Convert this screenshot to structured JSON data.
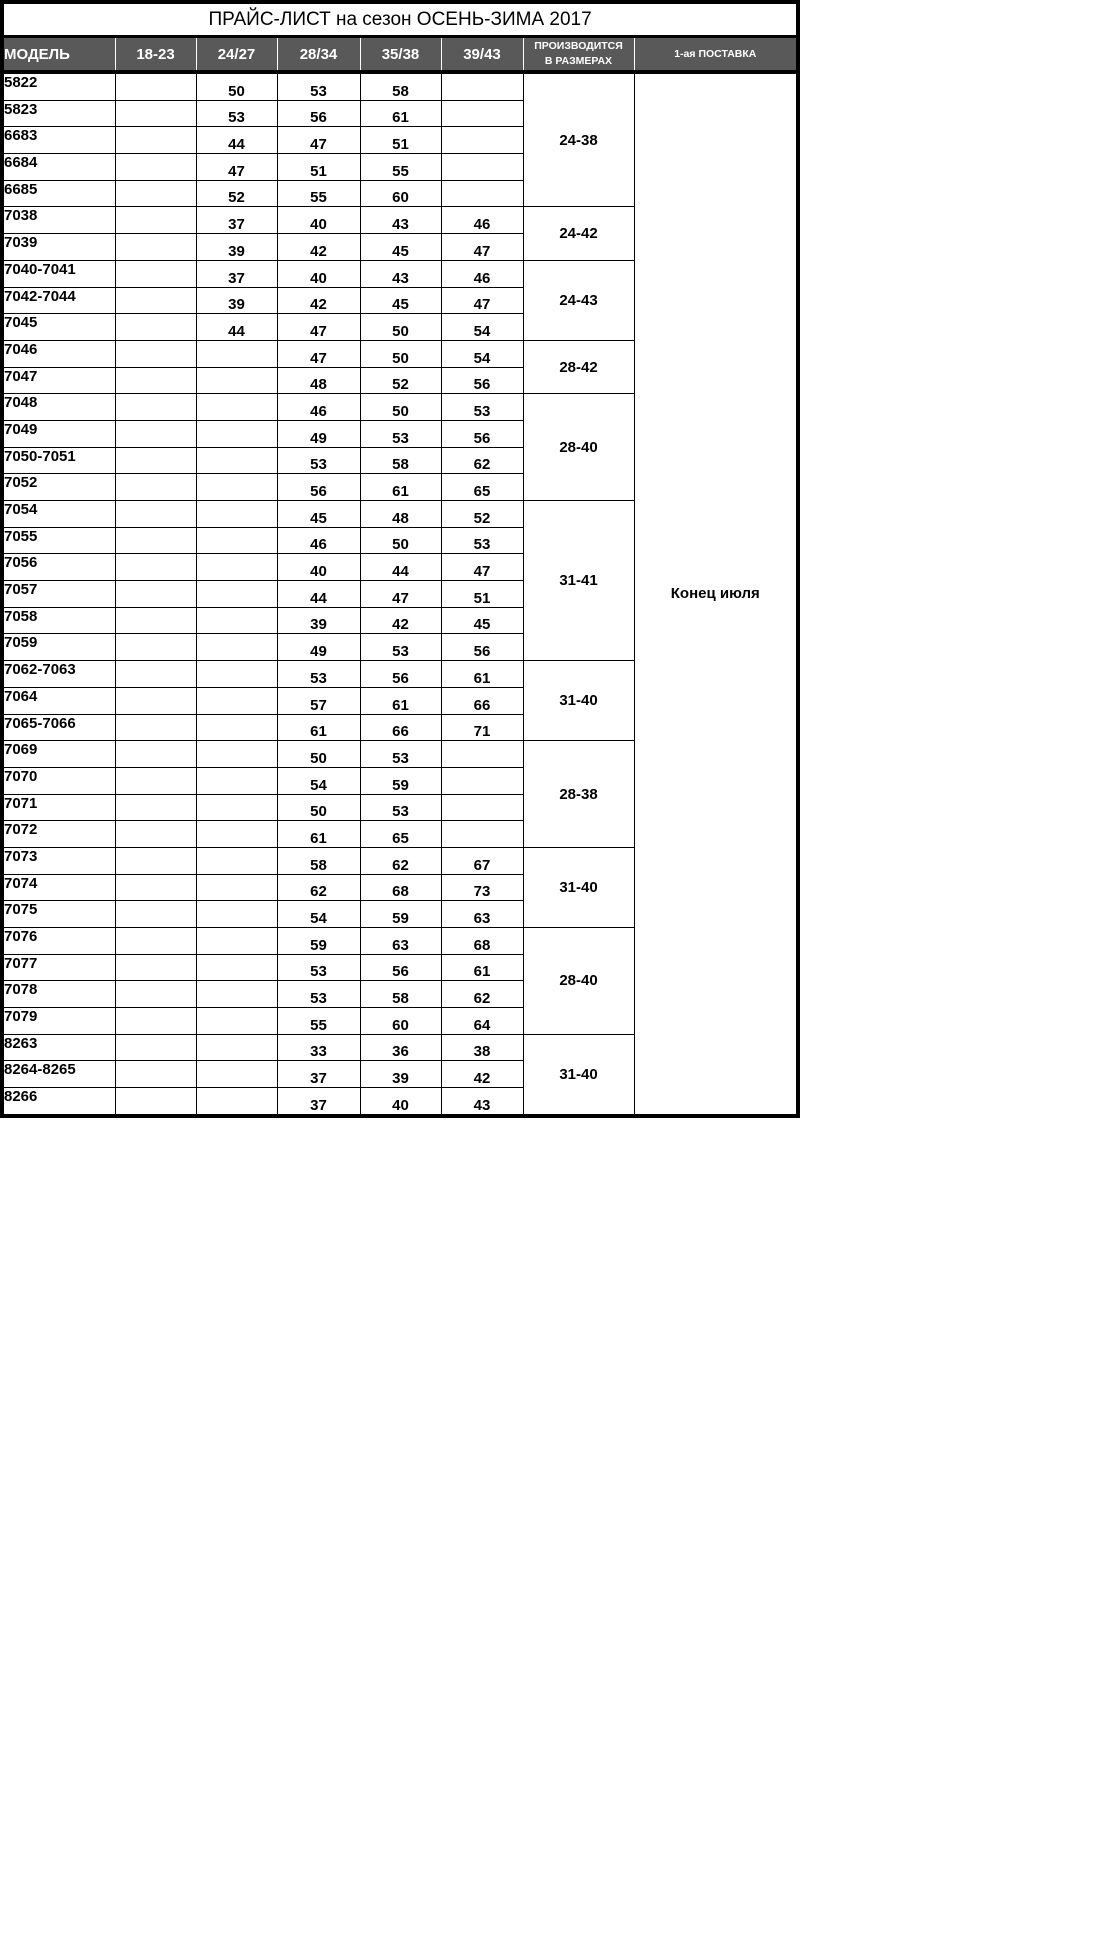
{
  "title": "ПРАЙС-ЛИСТ на сезон ОСЕНЬ-ЗИМА 2017",
  "header": {
    "model": "МОДЕЛЬ",
    "sizes": [
      "18-23",
      "24/27",
      "28/34",
      "35/38",
      "39/43"
    ],
    "range_line1": "ПРОИЗВОДИТСЯ",
    "range_line2": "В РАЗМЕРАХ",
    "delivery": "1-ая ПОСТАВКА"
  },
  "delivery": "Конец июля",
  "colors": {
    "header_bg": "#595959",
    "header_text": "#ffffff",
    "border": "#000000"
  },
  "blocks": [
    {
      "range": "24-38",
      "rows": [
        {
          "model": "5822",
          "values": [
            "",
            "50",
            "53",
            "58",
            ""
          ]
        },
        {
          "model": "5823",
          "values": [
            "",
            "53",
            "56",
            "61",
            ""
          ]
        },
        {
          "model": "6683",
          "values": [
            "",
            "44",
            "47",
            "51",
            ""
          ]
        },
        {
          "model": "6684",
          "values": [
            "",
            "47",
            "51",
            "55",
            ""
          ]
        },
        {
          "model": "6685",
          "values": [
            "",
            "52",
            "55",
            "60",
            ""
          ]
        }
      ]
    },
    {
      "range": "24-42",
      "rows": [
        {
          "model": "7038",
          "values": [
            "",
            "37",
            "40",
            "43",
            "46"
          ]
        },
        {
          "model": "7039",
          "values": [
            "",
            "39",
            "42",
            "45",
            "47"
          ]
        }
      ]
    },
    {
      "range": "24-43",
      "rows": [
        {
          "model": "7040-7041",
          "values": [
            "",
            "37",
            "40",
            "43",
            "46"
          ]
        },
        {
          "model": "7042-7044",
          "values": [
            "",
            "39",
            "42",
            "45",
            "47"
          ]
        },
        {
          "model": "7045",
          "values": [
            "",
            "44",
            "47",
            "50",
            "54"
          ]
        }
      ]
    },
    {
      "range": "28-42",
      "rows": [
        {
          "model": "7046",
          "values": [
            "",
            "",
            "47",
            "50",
            "54"
          ]
        },
        {
          "model": "7047",
          "values": [
            "",
            "",
            "48",
            "52",
            "56"
          ]
        }
      ]
    },
    {
      "range": "28-40",
      "rows": [
        {
          "model": "7048",
          "values": [
            "",
            "",
            "46",
            "50",
            "53"
          ]
        },
        {
          "model": "7049",
          "values": [
            "",
            "",
            "49",
            "53",
            "56"
          ]
        },
        {
          "model": "7050-7051",
          "values": [
            "",
            "",
            "53",
            "58",
            "62"
          ]
        },
        {
          "model": "7052",
          "values": [
            "",
            "",
            "56",
            "61",
            "65"
          ]
        }
      ]
    },
    {
      "range": "31-41",
      "rows": [
        {
          "model": "7054",
          "values": [
            "",
            "",
            "45",
            "48",
            "52"
          ]
        },
        {
          "model": "7055",
          "values": [
            "",
            "",
            "46",
            "50",
            "53"
          ]
        },
        {
          "model": "7056",
          "values": [
            "",
            "",
            "40",
            "44",
            "47"
          ]
        },
        {
          "model": "7057",
          "values": [
            "",
            "",
            "44",
            "47",
            "51"
          ]
        },
        {
          "model": "7058",
          "values": [
            "",
            "",
            "39",
            "42",
            "45"
          ]
        },
        {
          "model": "7059",
          "values": [
            "",
            "",
            "49",
            "53",
            "56"
          ]
        }
      ]
    },
    {
      "range": "31-40",
      "rows": [
        {
          "model": "7062-7063",
          "values": [
            "",
            "",
            "53",
            "56",
            "61"
          ]
        },
        {
          "model": "7064",
          "values": [
            "",
            "",
            "57",
            "61",
            "66"
          ]
        },
        {
          "model": "7065-7066",
          "values": [
            "",
            "",
            "61",
            "66",
            "71"
          ]
        }
      ]
    },
    {
      "range": "28-38",
      "rows": [
        {
          "model": "7069",
          "values": [
            "",
            "",
            "50",
            "53",
            ""
          ]
        },
        {
          "model": "7070",
          "values": [
            "",
            "",
            "54",
            "59",
            ""
          ]
        },
        {
          "model": "7071",
          "values": [
            "",
            "",
            "50",
            "53",
            ""
          ]
        },
        {
          "model": "7072",
          "values": [
            "",
            "",
            "61",
            "65",
            ""
          ]
        }
      ]
    },
    {
      "range": "31-40",
      "rows": [
        {
          "model": "7073",
          "values": [
            "",
            "",
            "58",
            "62",
            "67"
          ]
        },
        {
          "model": "7074",
          "values": [
            "",
            "",
            "62",
            "68",
            "73"
          ]
        },
        {
          "model": "7075",
          "values": [
            "",
            "",
            "54",
            "59",
            "63"
          ]
        }
      ]
    },
    {
      "range": "28-40",
      "rows": [
        {
          "model": "7076",
          "values": [
            "",
            "",
            "59",
            "63",
            "68"
          ]
        },
        {
          "model": "7077",
          "values": [
            "",
            "",
            "53",
            "56",
            "61"
          ]
        },
        {
          "model": "7078",
          "values": [
            "",
            "",
            "53",
            "58",
            "62"
          ]
        },
        {
          "model": "7079",
          "values": [
            "",
            "",
            "55",
            "60",
            "64"
          ]
        }
      ]
    },
    {
      "range": "31-40",
      "rows": [
        {
          "model": "8263",
          "values": [
            "",
            "",
            "33",
            "36",
            "38"
          ]
        },
        {
          "model": "8264-8265",
          "values": [
            "",
            "",
            "37",
            "39",
            "42"
          ]
        },
        {
          "model": "8266",
          "values": [
            "",
            "",
            "37",
            "40",
            "43"
          ]
        }
      ]
    }
  ]
}
